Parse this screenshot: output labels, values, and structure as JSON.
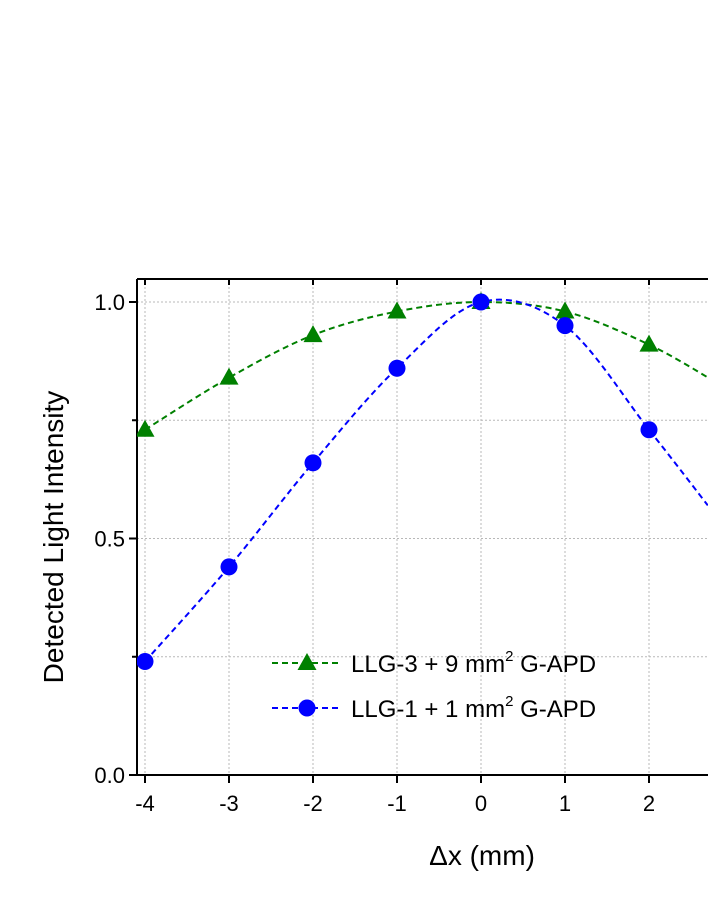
{
  "chart_data": {
    "type": "line",
    "title": "",
    "xlabel": "Δx (mm)",
    "ylabel": "Detected Light Intensity",
    "xlim": [
      -4.1,
      2.7
    ],
    "ylim": [
      0.0,
      1.05
    ],
    "x_ticks": [
      -4,
      -3,
      -2,
      -1,
      0,
      1,
      2
    ],
    "x_tick_labels": [
      "-4",
      "-3",
      "-2",
      "-1",
      "0",
      "1",
      "2"
    ],
    "y_ticks": [
      0.0,
      0.5,
      1.0
    ],
    "y_tick_labels": [
      "0.0",
      "0.5",
      "1.0"
    ],
    "y_minor_ticks": [
      0.25,
      0.75
    ],
    "grid": true,
    "legend_position": "lower-right",
    "series": [
      {
        "name": "LLG-3 + 9",
        "legend_unit": "mm",
        "legend_sup": "2",
        "legend_suffix": "G-APD",
        "color": "#008000",
        "marker": "triangle",
        "line_style": "dashed",
        "x": [
          -4,
          -3,
          -2,
          -1,
          0,
          1,
          2
        ],
        "y": [
          0.73,
          0.84,
          0.93,
          0.98,
          1.0,
          0.98,
          0.91
        ],
        "curve_end": [
          2.8,
          0.83
        ]
      },
      {
        "name": "LLG-1 + 1",
        "legend_unit": "mm",
        "legend_sup": "2",
        "legend_suffix": "G-APD",
        "color": "#0000ff",
        "marker": "circle",
        "line_style": "dashed",
        "x": [
          -4,
          -3,
          -2,
          -1,
          0,
          1,
          2
        ],
        "y": [
          0.24,
          0.44,
          0.66,
          0.86,
          1.0,
          0.95,
          0.73
        ],
        "curve_end": [
          2.7,
          0.57
        ]
      }
    ]
  }
}
